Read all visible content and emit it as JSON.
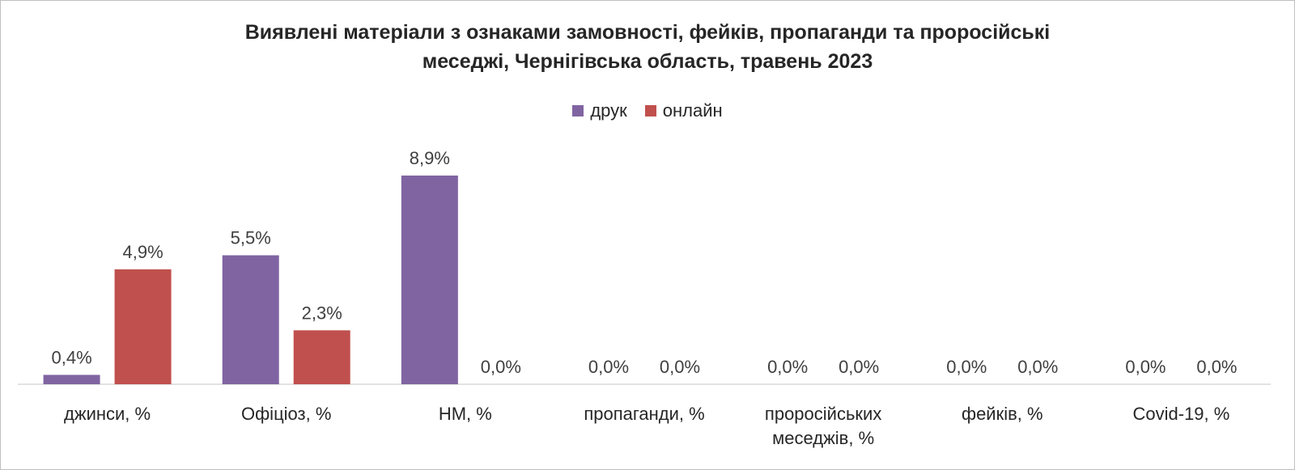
{
  "chart_data": {
    "type": "bar",
    "title": "Виявлені матеріали з ознаками замовності, фейків, пропаганди та проросійські меседжі, Чернігівська область, травень 2023",
    "title_lines": [
      "Виявлені матеріали з ознаками замовності, фейків, пропаганди та проросійські",
      "меседжі, Чернігівська область, травень 2023"
    ],
    "categories": [
      "джинси, %",
      "Офіціоз, %",
      "НМ, %",
      "пропаганди, %",
      "проросійських меседжів, %",
      "фейків, %",
      "Covid-19, %"
    ],
    "category_lines": [
      [
        "джинси, %"
      ],
      [
        "Офіціоз, %"
      ],
      [
        "НМ, %"
      ],
      [
        "пропаганди, %"
      ],
      [
        "проросійських",
        "меседжів, %"
      ],
      [
        "фейків, %"
      ],
      [
        "Covid-19, %"
      ]
    ],
    "series": [
      {
        "name": "друк",
        "color": "#8064a2",
        "values": [
          0.4,
          5.5,
          8.9,
          0.0,
          0.0,
          0.0,
          0.0
        ],
        "labels": [
          "0,4%",
          "5,5%",
          "8,9%",
          "0,0%",
          "0,0%",
          "0,0%",
          "0,0%"
        ]
      },
      {
        "name": "онлайн",
        "color": "#c0504d",
        "values": [
          4.9,
          2.3,
          0.0,
          0.0,
          0.0,
          0.0,
          0.0
        ],
        "labels": [
          "4,9%",
          "2,3%",
          "0,0%",
          "0,0%",
          "0,0%",
          "0,0%",
          "0,0%"
        ]
      }
    ],
    "xlabel": "",
    "ylabel": "",
    "ylim": [
      0,
      8.9
    ],
    "grid": false,
    "legend_position": "top-center",
    "axis_color": "#d9d9d9"
  }
}
